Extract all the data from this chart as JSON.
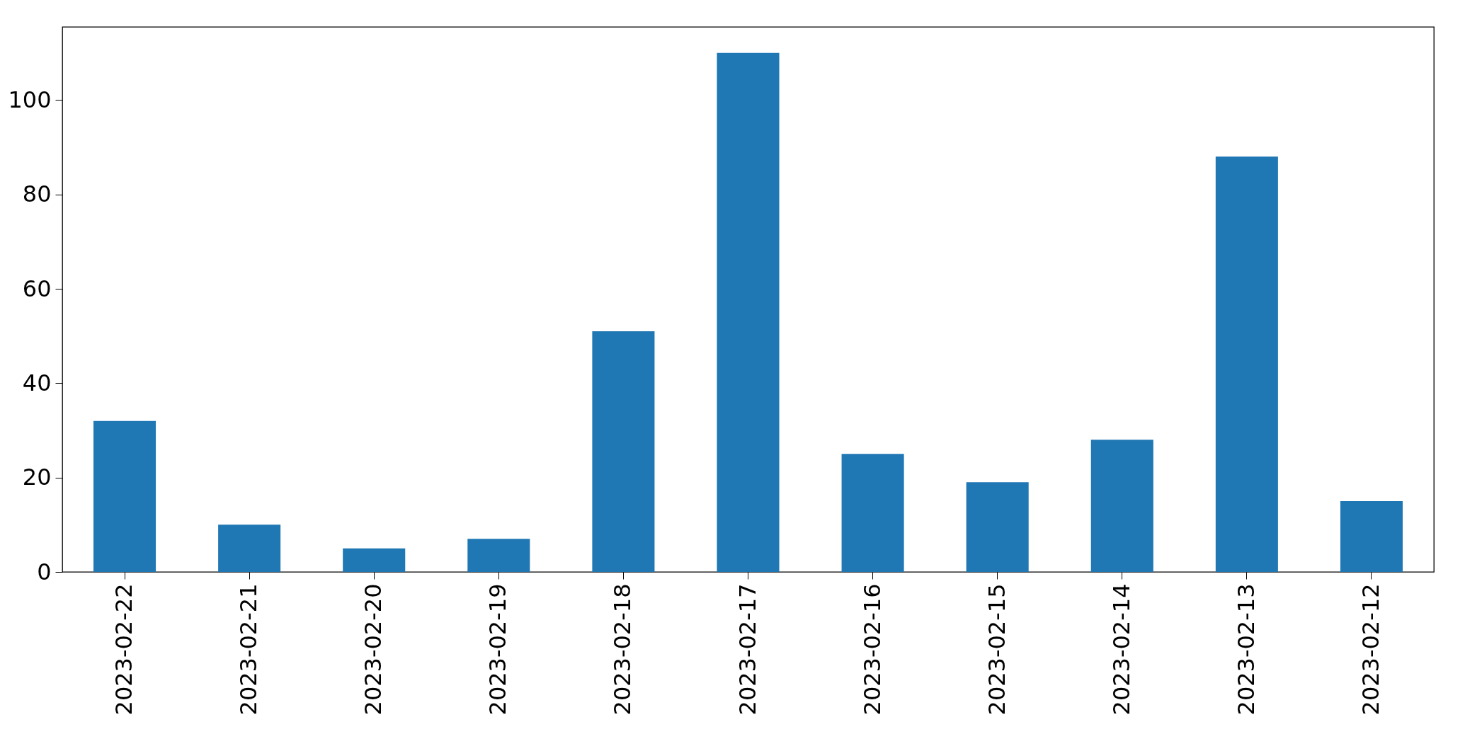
{
  "chart_data": {
    "type": "bar",
    "categories": [
      "2023-02-22",
      "2023-02-21",
      "2023-02-20",
      "2023-02-19",
      "2023-02-18",
      "2023-02-17",
      "2023-02-16",
      "2023-02-15",
      "2023-02-14",
      "2023-02-13",
      "2023-02-12"
    ],
    "values": [
      32,
      10,
      5,
      7,
      51,
      110,
      25,
      19,
      28,
      88,
      15
    ],
    "color": "#1f77b4",
    "ylim": [
      0,
      115.5
    ],
    "yticks": [
      0,
      20,
      40,
      60,
      80,
      100
    ],
    "grid": false
  }
}
